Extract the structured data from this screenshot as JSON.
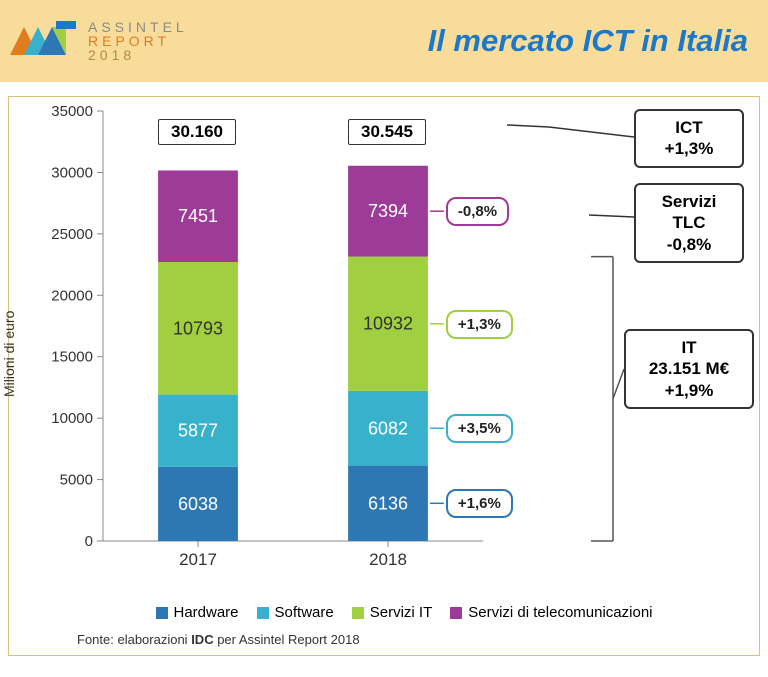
{
  "header": {
    "bg_color": "#f8dd9a",
    "title": "Il mercato ICT in Italia",
    "title_color": "#1e78c8",
    "logo_line1": "ASSINTEL",
    "logo_line2": "REPORT",
    "logo_line3": "2018"
  },
  "chart": {
    "type": "stacked-bar",
    "ylabel": "Milioni di euro",
    "ylim": [
      0,
      35000
    ],
    "ytick_step": 5000,
    "yticks": [
      "0",
      "5000",
      "10000",
      "15000",
      "20000",
      "25000",
      "30000",
      "35000"
    ],
    "categories": [
      "2017",
      "2018"
    ],
    "series": [
      {
        "name": "Hardware",
        "color": "#2e77b5",
        "values": [
          6038,
          6136
        ]
      },
      {
        "name": "Software",
        "color": "#37b1cc",
        "values": [
          5877,
          6082
        ]
      },
      {
        "name": "Servizi IT",
        "color": "#a0cf3f",
        "values": [
          10793,
          10932
        ]
      },
      {
        "name": "Servizi di telecomunicazioni",
        "color": "#9e3a97",
        "values": [
          7451,
          7394
        ]
      }
    ],
    "totals": [
      "30.160",
      "30.545"
    ],
    "value_label_color": "#ffffff",
    "value_label_color_green": "#333333",
    "axis_color": "#888888",
    "tick_font_size": 15,
    "bar_width_ratio": 0.42
  },
  "callouts": {
    "pct_hardware": "+1,6%",
    "pct_software": "+3,5%",
    "pct_serviziIT": "+1,3%",
    "pct_tlc": "-0,8%",
    "ict_line1": "ICT",
    "ict_line2": "+1,3%",
    "tlc_line1": "Servizi",
    "tlc_line2": "TLC",
    "tlc_line3": "-0,8%",
    "it_line1": "IT",
    "it_line2": "23.151 M€",
    "it_line3": "+1,9%"
  },
  "footer": {
    "prefix": "Fonte: elaborazioni ",
    "bold": "IDC",
    "suffix": " per Assintel Report 2018"
  }
}
